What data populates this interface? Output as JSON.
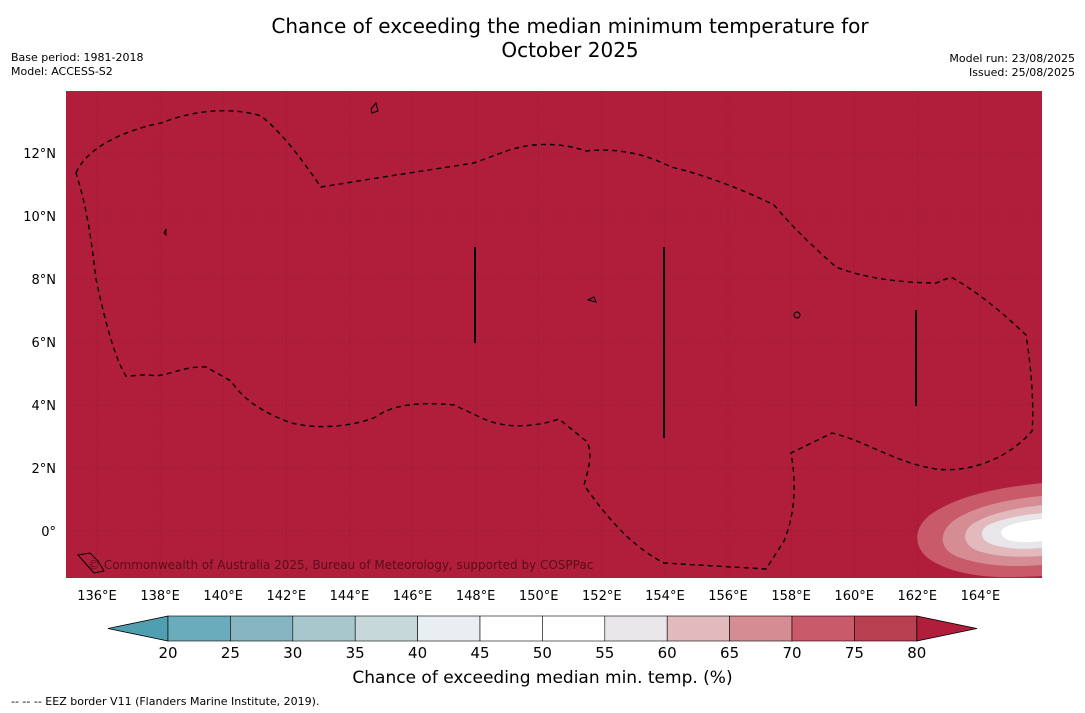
{
  "title_line1": "Chance of exceeding the median minimum temperature for",
  "title_line2": "October 2025",
  "meta": {
    "base_period": "Base period: 1981-2018",
    "model": "Model: ACCESS-S2",
    "model_run": "Model run: 23/08/2025",
    "issued": "Issued: 25/08/2025"
  },
  "map": {
    "lon_ticks": [
      "136°E",
      "138°E",
      "140°E",
      "142°E",
      "144°E",
      "146°E",
      "148°E",
      "150°E",
      "152°E",
      "154°E",
      "156°E",
      "158°E",
      "160°E",
      "162°E",
      "164°E"
    ],
    "lat_ticks": [
      "12°N",
      "10°N",
      "8°N",
      "6°N",
      "4°N",
      "2°N",
      "0°"
    ],
    "copyright": "© Commonwealth of Australia 2025, Bureau of Meteorology, supported by COSPPac",
    "dominant_category": "80",
    "colors": {
      "above_80": "#b01e3b",
      "70_75": "#c95a6a",
      "65_70": "#d58c93",
      "60_65": "#e2b9bc",
      "55_60": "#e8e6e8",
      "45_55": "#ffffff"
    }
  },
  "colorbar": {
    "label": "Chance of exceeding median min. temp. (%)",
    "ticks": [
      "20",
      "25",
      "30",
      "35",
      "40",
      "45",
      "50",
      "55",
      "60",
      "65",
      "70",
      "75",
      "80"
    ],
    "colors": [
      "#6aacbb",
      "#86b5c1",
      "#a8c7cc",
      "#c7d8db",
      "#e9eef0",
      "#ffffff",
      "#ffffff",
      "#e8e6e8",
      "#e2b9bc",
      "#d58c93",
      "#c95a6a",
      "#b84050"
    ],
    "low_extend_color": "#4f9fb1",
    "high_extend_color": "#b01e3b"
  },
  "footnote": "--  --  -- EEZ border V11 (Flanders Marine Institute, 2019)."
}
